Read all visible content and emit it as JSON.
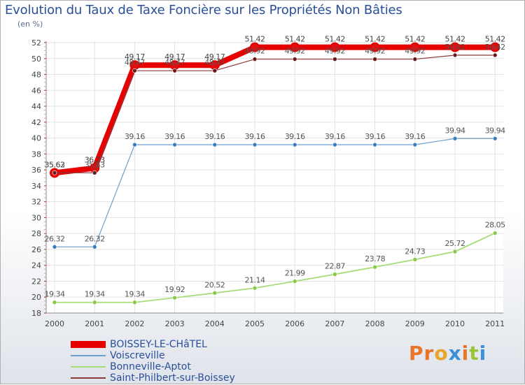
{
  "title": "Evolution du Taux de Taxe Foncière sur les Propriétés Non Bâties",
  "unit_label": "(en %)",
  "logo_text": "Proxiti",
  "logo_colors": [
    "#e8762a",
    "#e8762a",
    "#e8a52a",
    "#3a8fd8",
    "#e8762a",
    "#9ac43a",
    "#3a8fd8"
  ],
  "chart_data": {
    "type": "line",
    "title": "Evolution du Taux de Taxe Foncière sur les Propriétés Non Bâties",
    "ylabel": "(en %)",
    "xlabel": "",
    "x": [
      "2000",
      "2001",
      "2002",
      "2003",
      "2004",
      "2005",
      "2006",
      "2007",
      "2008",
      "2009",
      "2010",
      "2011"
    ],
    "ylim": [
      18,
      52
    ],
    "yticks": [
      18,
      20,
      22,
      24,
      26,
      28,
      30,
      32,
      34,
      36,
      38,
      40,
      42,
      44,
      46,
      48,
      50,
      52
    ],
    "grid": true,
    "series": [
      {
        "name": "BOISSEY-LE-CHâTEL",
        "color": "#e60000",
        "marker_color": "#d11",
        "values": [
          35.62,
          36.23,
          49.17,
          49.17,
          49.17,
          51.42,
          51.42,
          51.42,
          51.42,
          51.42,
          51.42,
          51.42
        ],
        "labels": [
          "35.62",
          "36.23",
          "49.17",
          "49.17",
          "49.17",
          "51.42",
          "51.42",
          "51.42",
          "51.42",
          "51.42",
          "51.42",
          "51.42"
        ]
      },
      {
        "name": "Voiscreville",
        "color": "#6a9ed0",
        "marker_color": "#3a7fc4",
        "values": [
          26.32,
          26.32,
          39.16,
          39.16,
          39.16,
          39.16,
          39.16,
          39.16,
          39.16,
          39.16,
          39.94,
          39.94
        ],
        "labels": [
          "26.32",
          "26.32",
          "39.16",
          "39.16",
          "39.16",
          "39.16",
          "39.16",
          "39.16",
          "39.16",
          "39.16",
          "39.94",
          "39.94"
        ]
      },
      {
        "name": "Bonneville-Aptot",
        "color": "#a8dc78",
        "marker_color": "#8ac84a",
        "values": [
          19.34,
          19.34,
          19.34,
          19.92,
          20.52,
          21.14,
          21.99,
          22.87,
          23.78,
          24.73,
          25.72,
          28.05
        ],
        "labels": [
          "19.34",
          "19.34",
          "19.34",
          "19.92",
          "20.52",
          "21.14",
          "21.99",
          "22.87",
          "23.78",
          "24.73",
          "25.72",
          "28.05"
        ]
      },
      {
        "name": "Saint-Philbert-sur-Boissey",
        "color": "#8b3a3a",
        "marker_color": "#6a1a1a",
        "values": [
          35.63,
          35.63,
          48.47,
          48.47,
          48.47,
          49.92,
          49.92,
          49.92,
          49.92,
          49.92,
          50.42,
          50.42
        ],
        "labels": [
          "35.63",
          "35.63",
          "48.47",
          "48.47",
          "48.47",
          "49.92",
          "49.92",
          "49.92",
          "49.92",
          "49.92",
          "50.42",
          "50.42"
        ]
      }
    ]
  }
}
